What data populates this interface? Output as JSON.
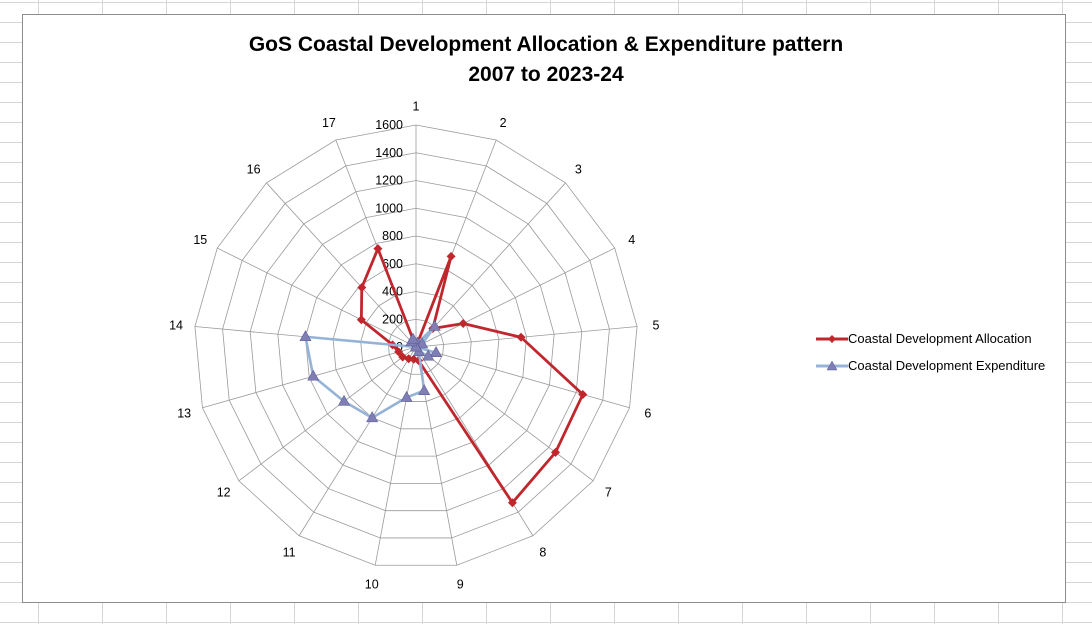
{
  "chart_data": {
    "type": "radar",
    "title": "GoS Coastal Development  Allocation & Expenditure  pattern",
    "subtitle": "2007 to 2023-24",
    "categories": [
      "1",
      "2",
      "3",
      "4",
      "5",
      "6",
      "7",
      "8",
      "9",
      "10",
      "11",
      "12",
      "13",
      "14",
      "15",
      "16",
      "17"
    ],
    "rticks": [
      "0",
      "200",
      "400",
      "600",
      "800",
      "1000",
      "1200",
      "1400",
      "1600"
    ],
    "rlim": [
      0,
      1600
    ],
    "grid": true,
    "legend_position": "right",
    "series": [
      {
        "name": "Coastal Development Allocation",
        "color": "#c0272d",
        "marker": "diamond",
        "values": [
          0,
          700,
          180,
          380,
          760,
          1250,
          1260,
          1320,
          100,
          90,
          100,
          120,
          130,
          170,
          440,
          580,
          760
        ]
      },
      {
        "name": "Coastal Development Expenditure",
        "color": "#95b3d7",
        "marker": "triangle",
        "values": [
          0,
          30,
          200,
          50,
          0,
          150,
          110,
          40,
          320,
          370,
          600,
          650,
          770,
          800,
          0,
          50,
          60
        ]
      }
    ]
  }
}
